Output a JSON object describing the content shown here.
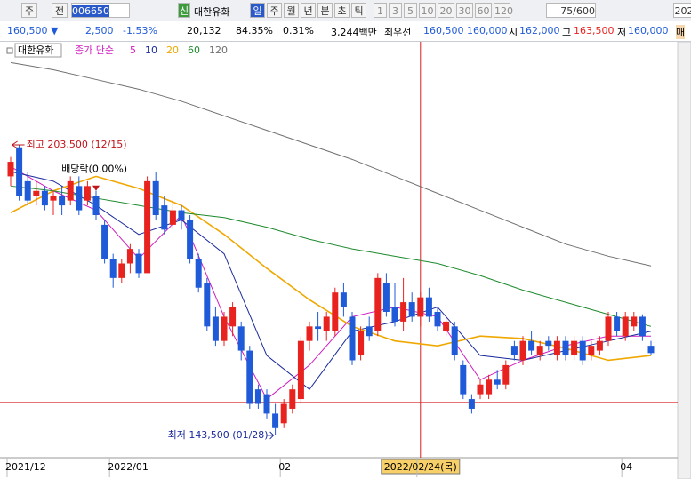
{
  "toolbar": {
    "market": "주",
    "prev": "전",
    "code": "006650",
    "badge": "신",
    "name": "대한유화",
    "periods": [
      "일",
      "주",
      "월",
      "년",
      "분",
      "초",
      "틱"
    ],
    "minutes": [
      "1",
      "3",
      "5",
      "10",
      "20",
      "30",
      "60",
      "120"
    ],
    "count": "75/600",
    "date": "202"
  },
  "quote": {
    "price": "160,500 ▼",
    "change": "2,500",
    "rate": "-1.53%",
    "volume": "20,132",
    "vol_ratio": "84.35%",
    "turnover": "0.31%",
    "amount": "3,244백만",
    "best_label": "최우선",
    "ask": "160,500",
    "bid": "160,000",
    "open_label": "시",
    "open": "162,000",
    "high_label": "고",
    "high": "163,500",
    "low_label": "저",
    "low": "160,000",
    "side": "매"
  },
  "chart_data": {
    "type": "candlestick",
    "legend_name": "대한유화",
    "ma_label": "종가 단순",
    "up_color": "#e8231f",
    "down_color": "#1f5ad8",
    "ylim": [
      138900,
      221300
    ],
    "categories": [
      "2021/12",
      null,
      null,
      null,
      null,
      null,
      null,
      null,
      null,
      null,
      null,
      null,
      "2022/01",
      null,
      null,
      null,
      null,
      null,
      null,
      null,
      null,
      null,
      null,
      null,
      null,
      null,
      null,
      null,
      null,
      null,
      null,
      null,
      "02",
      null,
      null,
      null,
      null,
      null,
      null,
      null,
      null,
      null,
      null,
      null,
      null,
      null,
      null,
      null,
      "2022/02/24(목)",
      null,
      null,
      null,
      null,
      null,
      null,
      null,
      null,
      null,
      null,
      null,
      null,
      null,
      null,
      null,
      null,
      null,
      null,
      null,
      null,
      null,
      null,
      null,
      "04",
      null,
      null,
      null
    ],
    "open": [
      197000,
      203000,
      196000,
      193000,
      194000,
      192000,
      193000,
      192000,
      195000,
      192000,
      193000,
      187000,
      180000,
      176000,
      179000,
      181000,
      177000,
      196000,
      191000,
      187000,
      190000,
      188000,
      180000,
      175000,
      168000,
      163000,
      166000,
      166000,
      161000,
      153000,
      152000,
      148000,
      146000,
      149000,
      151000,
      163000,
      166000,
      165000,
      165000,
      173000,
      168000,
      160000,
      166000,
      165000,
      175000,
      170000,
      167000,
      171000,
      168000,
      172000,
      169000,
      165000,
      166000,
      158000,
      151000,
      152000,
      152000,
      155000,
      154000,
      162000,
      159000,
      163000,
      160000,
      163000,
      160000,
      163000,
      160000,
      163000,
      160000,
      161000,
      163000,
      168000,
      164000,
      166000,
      168000,
      162000
    ],
    "high": [
      201000,
      203500,
      198000,
      196000,
      195000,
      194000,
      195000,
      197000,
      197000,
      196000,
      194000,
      188000,
      181000,
      180000,
      183000,
      182000,
      197000,
      198000,
      193000,
      192000,
      191000,
      189000,
      181000,
      176000,
      170000,
      169000,
      171000,
      167000,
      162000,
      154000,
      153000,
      150000,
      151000,
      154000,
      164000,
      167000,
      169000,
      169000,
      174000,
      175000,
      169000,
      166000,
      168000,
      177000,
      177000,
      175000,
      176000,
      173000,
      173000,
      174000,
      170000,
      168000,
      167000,
      159000,
      152000,
      155000,
      156000,
      157000,
      159000,
      163000,
      164000,
      165000,
      163000,
      164000,
      164000,
      164000,
      164000,
      164000,
      163000,
      164000,
      169000,
      169000,
      169000,
      169000,
      168500,
      163000
    ],
    "low": [
      195000,
      192000,
      191000,
      191000,
      190000,
      189000,
      189000,
      191000,
      189000,
      191000,
      188000,
      179000,
      174000,
      175000,
      177000,
      176000,
      177000,
      188000,
      185000,
      186000,
      186000,
      179000,
      173000,
      165000,
      162000,
      162000,
      164000,
      159000,
      149000,
      149000,
      147000,
      143500,
      145000,
      148000,
      150000,
      161000,
      163000,
      163000,
      164000,
      168000,
      158000,
      159000,
      163000,
      164000,
      168000,
      166000,
      165000,
      167000,
      166000,
      167000,
      165000,
      164000,
      159000,
      151000,
      148000,
      151000,
      151000,
      153000,
      153000,
      159000,
      158000,
      160000,
      159000,
      161000,
      159000,
      159000,
      159000,
      158000,
      159000,
      160000,
      162000,
      164000,
      163000,
      165000,
      163000,
      160000
    ],
    "close": [
      200000,
      193000,
      192000,
      194000,
      191000,
      193000,
      191000,
      196000,
      190000,
      195000,
      189000,
      180000,
      176000,
      179000,
      182000,
      177000,
      196000,
      189000,
      186000,
      190000,
      188000,
      180000,
      174000,
      166000,
      163000,
      168000,
      170000,
      161000,
      150000,
      150000,
      148000,
      145000,
      150000,
      153000,
      163000,
      166000,
      165500,
      168000,
      173000,
      170000,
      159000,
      165000,
      164000,
      176000,
      169000,
      167000,
      171000,
      168000,
      172000,
      168000,
      166000,
      167000,
      160000,
      152000,
      149000,
      154000,
      155000,
      154000,
      158000,
      160000,
      163000,
      161000,
      162000,
      162000,
      163000,
      160000,
      163000,
      159000,
      162000,
      163000,
      168000,
      165000,
      168000,
      168000,
      164000,
      160500
    ],
    "ma_x": [
      0,
      5,
      10,
      15,
      20,
      25,
      30,
      35,
      40,
      45,
      50,
      55,
      60,
      65,
      70,
      75
    ],
    "ma": [
      {
        "name": "5",
        "color": "#d01cc0",
        "values": [
          199000,
          194000,
          190000,
          180000,
          189000,
          168000,
          151000,
          158000,
          168000,
          170000,
          168000,
          155000,
          159000,
          162000,
          164000,
          164000
        ]
      },
      {
        "name": "10",
        "color": "#1a2a9c",
        "values": [
          198000,
          196000,
          191000,
          185000,
          188000,
          181000,
          160000,
          153000,
          165000,
          167000,
          170000,
          160000,
          159000,
          161000,
          163000,
          165000
        ]
      },
      {
        "name": "20",
        "color": "#f0a800",
        "values": [
          189500,
          194000,
          197000,
          194500,
          191000,
          185000,
          178000,
          171500,
          166000,
          163000,
          162000,
          164000,
          163500,
          161500,
          159000,
          160000
        ]
      },
      {
        "name": "60",
        "color": "#1e8a2e",
        "values": [
          195000,
          194000,
          192500,
          191000,
          189500,
          188500,
          186500,
          184000,
          182000,
          180500,
          179000,
          176500,
          173500,
          171000,
          168500,
          166000
        ]
      },
      {
        "name": "120",
        "color": "#707070",
        "values": [
          220500,
          219000,
          217000,
          215000,
          212500,
          209500,
          206500,
          203500,
          200500,
          197000,
          193500,
          190000,
          186500,
          183000,
          180500,
          178500
        ]
      }
    ],
    "annotations": {
      "high": {
        "label": "최고 203,500 (12/15)",
        "index": 1
      },
      "low": {
        "label": "최저 143,500 (01/28)",
        "index": 31
      },
      "dividend": {
        "label": "배당락(0.00%)",
        "index": 7
      }
    },
    "crosshair": {
      "index": 48,
      "value": 150300
    }
  }
}
